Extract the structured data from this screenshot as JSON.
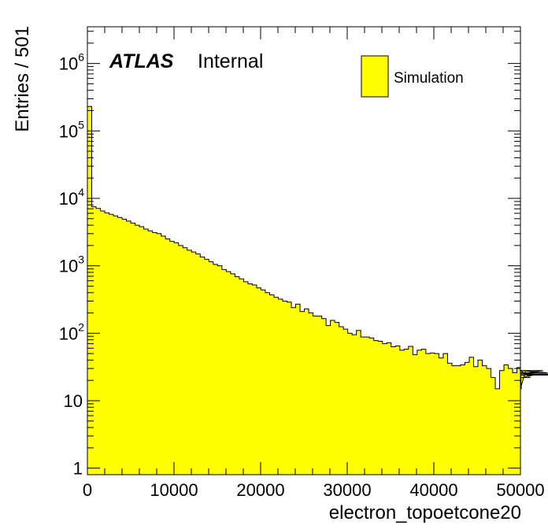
{
  "chart_data": {
    "type": "histogram",
    "experiment_label": "ATLAS",
    "status_label": "Internal",
    "xlabel": "electron_topoetcone20",
    "ylabel": "Entries / 501",
    "xlim": [
      0,
      50000
    ],
    "ylim": [
      0.8,
      3500000
    ],
    "yscale": "log",
    "bin_width": 501,
    "x_tick_labels": [
      {
        "value": 0,
        "label": "0"
      },
      {
        "value": 10000,
        "label": "10000"
      },
      {
        "value": 20000,
        "label": "20000"
      },
      {
        "value": 30000,
        "label": "30000"
      },
      {
        "value": 40000,
        "label": "40000"
      },
      {
        "value": 50000,
        "label": "50000"
      }
    ],
    "y_tick_labels": [
      {
        "value": 1,
        "base": "1",
        "exp": ""
      },
      {
        "value": 10,
        "base": "10",
        "exp": ""
      },
      {
        "value": 100,
        "base": "10",
        "exp": "2"
      },
      {
        "value": 1000,
        "base": "10",
        "exp": "3"
      },
      {
        "value": 10000,
        "base": "10",
        "exp": "4"
      },
      {
        "value": 100000,
        "base": "10",
        "exp": "5"
      },
      {
        "value": 1000000,
        "base": "10",
        "exp": "6"
      }
    ],
    "fill_color": "#ffff00",
    "line_color": "#000000",
    "legend": {
      "position": "top-right",
      "entries": [
        {
          "name": "Simulation",
          "color": "#ffff00"
        }
      ]
    },
    "series": [
      {
        "name": "Simulation",
        "bin_edges_start": 0,
        "values": [
          230000,
          7500,
          7100,
          6500,
          6100,
          5800,
          5500,
          5200,
          4900,
          4600,
          4300,
          4000,
          3800,
          3500,
          3300,
          3100,
          3000,
          2750,
          2500,
          2300,
          2200,
          2000,
          1850,
          1700,
          1600,
          1500,
          1350,
          1250,
          1150,
          1050,
          1000,
          880,
          820,
          760,
          690,
          640,
          580,
          540,
          520,
          470,
          440,
          400,
          370,
          340,
          320,
          300,
          290,
          240,
          270,
          210,
          230,
          200,
          180,
          180,
          165,
          130,
          155,
          145,
          125,
          115,
          100,
          95,
          110,
          88,
          88,
          85,
          78,
          76,
          70,
          72,
          63,
          65,
          56,
          58,
          64,
          48,
          56,
          58,
          50,
          51,
          50,
          43,
          50,
          36,
          33,
          33,
          34,
          37,
          44,
          32,
          40,
          33,
          30,
          22,
          15,
          28,
          34,
          30,
          26,
          31,
          15,
          28,
          22,
          24,
          25,
          28,
          26,
          24,
          25
        ]
      }
    ]
  }
}
